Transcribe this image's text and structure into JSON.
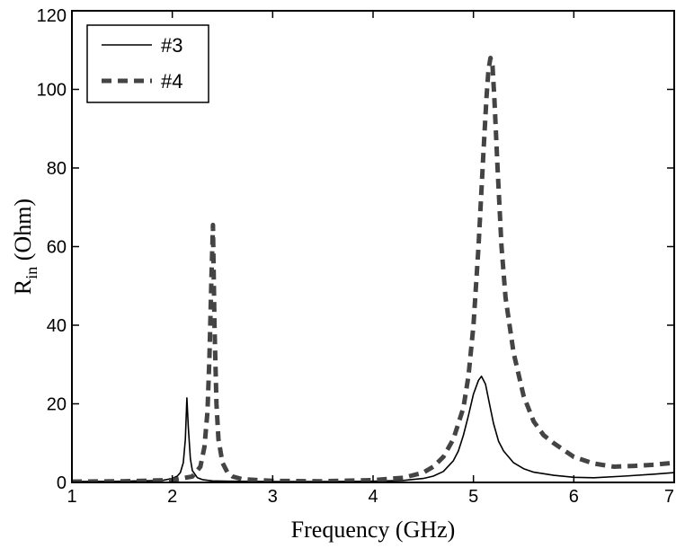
{
  "chart_data": {
    "type": "line",
    "title": "",
    "xlabel": "Frequency (GHz)",
    "ylabel_main": "R",
    "ylabel_sub": "in",
    "ylabel_rest": " (Ohm)",
    "xlim": [
      1,
      7
    ],
    "ylim": [
      0,
      120
    ],
    "xticks": [
      1,
      2,
      3,
      4,
      5,
      6,
      7
    ],
    "yticks": [
      0,
      20,
      40,
      60,
      80,
      100,
      120
    ],
    "xtick_labels": [
      "1",
      "2",
      "3",
      "4",
      "5",
      "6",
      "7"
    ],
    "ytick_labels": [
      "0",
      "20",
      "40",
      "60",
      "80",
      "100",
      "120"
    ],
    "grid": false,
    "legend_position": "top-left",
    "series": [
      {
        "name": "#3",
        "style": "solid",
        "color": "#000000",
        "x": [
          1.0,
          1.5,
          1.9,
          2.0,
          2.05,
          2.08,
          2.11,
          2.13,
          2.145,
          2.16,
          2.18,
          2.2,
          2.25,
          2.3,
          2.4,
          2.6,
          3.0,
          3.5,
          4.0,
          4.3,
          4.5,
          4.6,
          4.7,
          4.8,
          4.85,
          4.9,
          4.95,
          5.0,
          5.05,
          5.08,
          5.12,
          5.16,
          5.2,
          5.25,
          5.3,
          5.4,
          5.5,
          5.6,
          5.8,
          6.0,
          6.2,
          6.5,
          6.8,
          7.0
        ],
        "y": [
          0.2,
          0.3,
          0.5,
          1.0,
          1.6,
          2.5,
          5.0,
          11.0,
          21.5,
          14.0,
          6.0,
          3.0,
          1.2,
          0.7,
          0.4,
          0.3,
          0.2,
          0.2,
          0.3,
          0.5,
          1.0,
          1.6,
          2.8,
          5.5,
          8.0,
          12.0,
          17.0,
          22.5,
          26.0,
          27.0,
          25.0,
          20.0,
          15.0,
          10.5,
          8.0,
          5.0,
          3.5,
          2.6,
          1.8,
          1.3,
          1.2,
          1.6,
          2.1,
          2.5
        ]
      },
      {
        "name": "#4",
        "style": "dashed",
        "color": "#444444",
        "x": [
          1.0,
          1.5,
          2.0,
          2.2,
          2.28,
          2.32,
          2.35,
          2.37,
          2.39,
          2.405,
          2.42,
          2.44,
          2.46,
          2.5,
          2.55,
          2.6,
          2.7,
          3.0,
          3.5,
          4.0,
          4.3,
          4.5,
          4.6,
          4.7,
          4.8,
          4.9,
          4.95,
          5.0,
          5.05,
          5.1,
          5.13,
          5.15,
          5.17,
          5.19,
          5.21,
          5.24,
          5.28,
          5.32,
          5.4,
          5.5,
          5.6,
          5.7,
          5.8,
          6.0,
          6.2,
          6.4,
          6.6,
          6.8,
          7.0
        ],
        "y": [
          0.2,
          0.3,
          0.6,
          1.5,
          4.0,
          9.0,
          18.0,
          32.0,
          52.0,
          65.5,
          40.0,
          20.0,
          11.0,
          5.0,
          2.5,
          1.5,
          0.8,
          0.4,
          0.3,
          0.6,
          1.2,
          2.5,
          4.0,
          6.5,
          11.0,
          19.0,
          27.0,
          40.0,
          60.0,
          84.0,
          98.0,
          105.0,
          108.0,
          106.0,
          97.0,
          80.0,
          60.0,
          47.0,
          33.0,
          22.0,
          15.5,
          12.0,
          10.0,
          6.5,
          4.8,
          4.0,
          4.2,
          4.5,
          5.0
        ]
      }
    ]
  }
}
